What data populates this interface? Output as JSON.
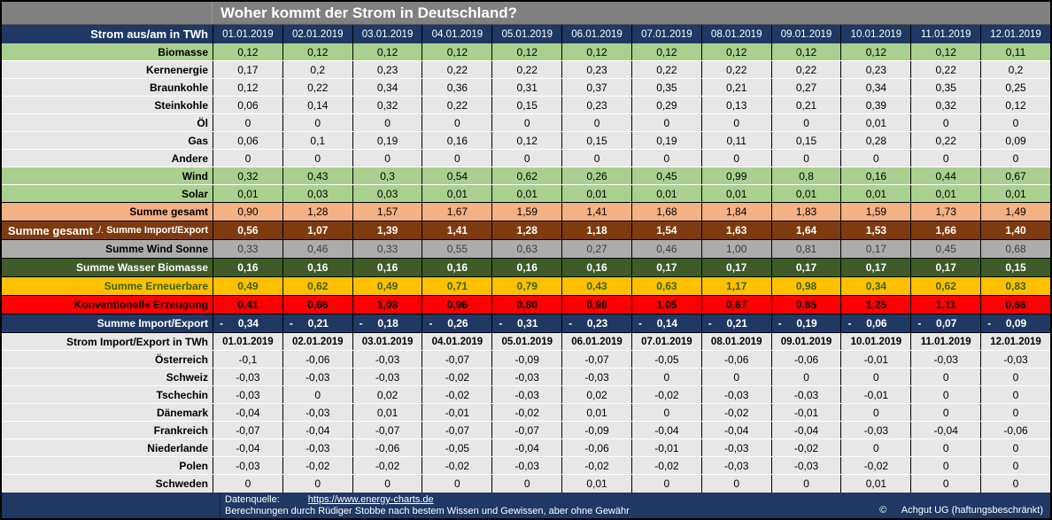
{
  "chart_data": [
    {
      "type": "table",
      "title": "Woher kommt der Strom in Deutschland?",
      "header_label": "Strom aus/am in TWh",
      "columns": [
        "01.01.2019",
        "02.01.2019",
        "03.01.2019",
        "04.01.2019",
        "05.01.2019",
        "06.01.2019",
        "07.01.2019",
        "08.01.2019",
        "09.01.2019",
        "10.01.2019",
        "11.01.2019",
        "12.01.2019"
      ],
      "rows": [
        {
          "label": "Biomasse",
          "style": "green",
          "values": [
            "0,12",
            "0,12",
            "0,12",
            "0,12",
            "0,12",
            "0,12",
            "0,12",
            "0,12",
            "0,12",
            "0,12",
            "0,12",
            "0,11"
          ]
        },
        {
          "label": "Kernenergie",
          "style": "light",
          "values": [
            "0,17",
            "0,2",
            "0,23",
            "0,22",
            "0,22",
            "0,23",
            "0,22",
            "0,22",
            "0,22",
            "0,23",
            "0,22",
            "0,2"
          ]
        },
        {
          "label": "Braunkohle",
          "style": "light",
          "values": [
            "0,12",
            "0,22",
            "0,34",
            "0,36",
            "0,31",
            "0,37",
            "0,35",
            "0,21",
            "0,27",
            "0,34",
            "0,35",
            "0,25"
          ]
        },
        {
          "label": "Steinkohle",
          "style": "light",
          "values": [
            "0,06",
            "0,14",
            "0,32",
            "0,22",
            "0,15",
            "0,23",
            "0,29",
            "0,13",
            "0,21",
            "0,39",
            "0,32",
            "0,12"
          ]
        },
        {
          "label": "Öl",
          "style": "light",
          "values": [
            "0",
            "0",
            "0",
            "0",
            "0",
            "0",
            "0",
            "0",
            "0",
            "0,01",
            "0",
            "0"
          ]
        },
        {
          "label": "Gas",
          "style": "light",
          "values": [
            "0,06",
            "0,1",
            "0,19",
            "0,16",
            "0,12",
            "0,15",
            "0,19",
            "0,11",
            "0,15",
            "0,28",
            "0,22",
            "0,09"
          ]
        },
        {
          "label": "Andere",
          "style": "light",
          "values": [
            "0",
            "0",
            "0",
            "0",
            "0",
            "0",
            "0",
            "0",
            "0",
            "0",
            "0",
            "0"
          ]
        },
        {
          "label": "Wind",
          "style": "green",
          "values": [
            "0,32",
            "0,43",
            "0,3",
            "0,54",
            "0,62",
            "0,26",
            "0,45",
            "0,99",
            "0,8",
            "0,16",
            "0,44",
            "0,67"
          ]
        },
        {
          "label": "Solar",
          "style": "green",
          "values": [
            "0,01",
            "0,03",
            "0,03",
            "0,01",
            "0,01",
            "0,01",
            "0,01",
            "0,01",
            "0,01",
            "0,01",
            "0,01",
            "0,01"
          ]
        },
        {
          "label": "Summe gesamt",
          "style": "peach",
          "values": [
            "0,90",
            "1,28",
            "1,57",
            "1,67",
            "1,59",
            "1,41",
            "1,68",
            "1,84",
            "1,83",
            "1,59",
            "1,73",
            "1,49"
          ]
        },
        {
          "label_main": "Summe gesamt",
          "label_sep": "./.",
          "label_sub": "Summe Import/Export",
          "style": "brown",
          "values": [
            "0,56",
            "1,07",
            "1,39",
            "1,41",
            "1,28",
            "1,18",
            "1,54",
            "1,63",
            "1,64",
            "1,53",
            "1,66",
            "1,40"
          ]
        },
        {
          "label": "Summe Wind Sonne",
          "style": "gray",
          "values": [
            "0,33",
            "0,46",
            "0,33",
            "0,55",
            "0,63",
            "0,27",
            "0,46",
            "1,00",
            "0,81",
            "0,17",
            "0,45",
            "0,68"
          ]
        },
        {
          "label": "Summe Wasser Biomasse",
          "style": "dgreen",
          "values": [
            "0,16",
            "0,16",
            "0,16",
            "0,16",
            "0,16",
            "0,16",
            "0,17",
            "0,17",
            "0,17",
            "0,17",
            "0,17",
            "0,15"
          ]
        },
        {
          "label": "Summe Erneuerbare",
          "style": "gold",
          "values": [
            "0,49",
            "0,62",
            "0,49",
            "0,71",
            "0,79",
            "0,43",
            "0,63",
            "1,17",
            "0,98",
            "0,34",
            "0,62",
            "0,83"
          ]
        },
        {
          "label": "Konventionelle Erzeugung",
          "style": "red",
          "values": [
            "0,41",
            "0,66",
            "1,08",
            "0,96",
            "0,80",
            "0,98",
            "1,05",
            "0,67",
            "0,85",
            "1,25",
            "1,11",
            "0,66"
          ]
        },
        {
          "label": "Summe Import/Export",
          "style": "navy",
          "value_prefix": "-",
          "values": [
            "0,34",
            "0,21",
            "0,18",
            "0,26",
            "0,31",
            "0,23",
            "0,14",
            "0,21",
            "0,19",
            "0,06",
            "0,07",
            "0,09"
          ]
        }
      ]
    },
    {
      "type": "table",
      "header_label": "Strom Import/Export in TWh",
      "columns": [
        "01.01.2019",
        "02.01.2019",
        "03.01.2019",
        "04.01.2019",
        "05.01.2019",
        "06.01.2019",
        "07.01.2019",
        "08.01.2019",
        "09.01.2019",
        "10.01.2019",
        "11.01.2019",
        "12.01.2019"
      ],
      "rows": [
        {
          "label": "Österreich",
          "style": "light",
          "values": [
            "-0,1",
            "-0,06",
            "-0,03",
            "-0,07",
            "-0,09",
            "-0,07",
            "-0,05",
            "-0,06",
            "-0,06",
            "-0,01",
            "-0,03",
            "-0,03"
          ]
        },
        {
          "label": "Schweiz",
          "style": "light",
          "values": [
            "-0,03",
            "-0,03",
            "-0,03",
            "-0,02",
            "-0,03",
            "-0,03",
            "0",
            "0",
            "0",
            "0",
            "0",
            "0"
          ]
        },
        {
          "label": "Tschechin",
          "style": "light",
          "values": [
            "-0,03",
            "0",
            "0,02",
            "-0,02",
            "-0,03",
            "0,02",
            "-0,02",
            "-0,03",
            "-0,03",
            "-0,01",
            "0",
            "0"
          ]
        },
        {
          "label": "Dänemark",
          "style": "light",
          "values": [
            "-0,04",
            "-0,03",
            "0,01",
            "-0,01",
            "-0,02",
            "0,01",
            "0",
            "-0,02",
            "-0,01",
            "0",
            "0",
            "0"
          ]
        },
        {
          "label": "Frankreich",
          "style": "light",
          "values": [
            "-0,07",
            "-0,04",
            "-0,07",
            "-0,07",
            "-0,07",
            "-0,09",
            "-0,04",
            "-0,04",
            "-0,04",
            "-0,03",
            "-0,04",
            "-0,06"
          ]
        },
        {
          "label": "Niederlande",
          "style": "light",
          "values": [
            "-0,04",
            "-0,03",
            "-0,06",
            "-0,05",
            "-0,04",
            "-0,06",
            "-0,01",
            "-0,03",
            "-0,02",
            "0",
            "0",
            "0"
          ]
        },
        {
          "label": "Polen",
          "style": "light",
          "values": [
            "-0,03",
            "-0,02",
            "-0,02",
            "-0,02",
            "-0,03",
            "-0,02",
            "-0,02",
            "-0,03",
            "-0,03",
            "-0,02",
            "0",
            "0"
          ]
        },
        {
          "label": "Schweden",
          "style": "light",
          "values": [
            "0",
            "0",
            "0",
            "0",
            "0",
            "0,01",
            "0",
            "0",
            "0",
            "0,01",
            "0",
            "0"
          ]
        }
      ]
    }
  ],
  "colors": {
    "header_navy": "#1F3864",
    "title_gray": "#808080",
    "renewable_green": "#A9D08E",
    "light_gray": "#E8E7E7",
    "sum_peach": "#F4B183",
    "sum_brown": "#7E3B0F",
    "sum_gray": "#ACACAC",
    "sum_darkgreen": "#3E5B28",
    "sum_gold": "#FFC000",
    "sum_red": "#FF0000"
  },
  "footer": {
    "source_label": "Datenquelle:",
    "source_link": "https://www.energy-charts.de",
    "disclaimer": "Berechnungen durch Rüdiger Stobbe nach bestem Wissen und Gewissen, aber ohne Gewähr",
    "copyright_symbol": "©",
    "copyright_text": "Achgut UG (haftungsbeschränkt)"
  }
}
